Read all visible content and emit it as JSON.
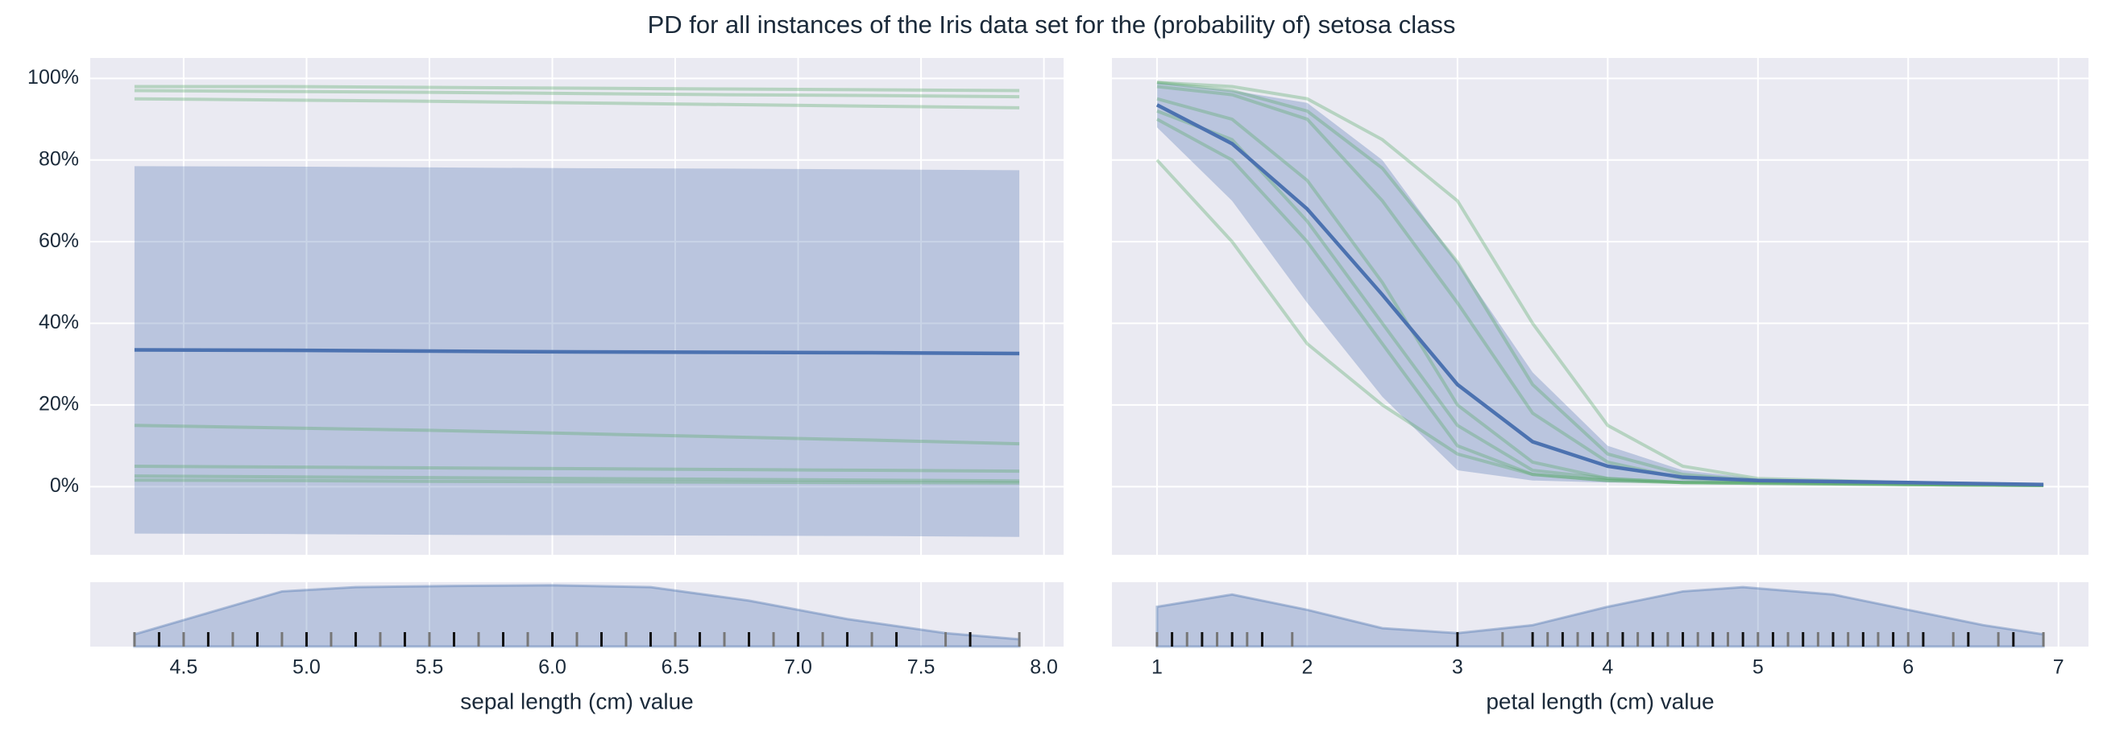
{
  "title": "PD for all instances of the Iris data set for the (probability of) setosa class",
  "chart_data": [
    {
      "type": "line",
      "xlabel": "sepal length (cm) value",
      "xlim": [
        4.12,
        8.08
      ],
      "ylim": [
        -16.7,
        105
      ],
      "xticks": [
        4.5,
        {
          "value": 5,
          "label": "5.0"
        },
        5.5,
        {
          "value": 6,
          "label": "6.0"
        },
        6.5,
        {
          "value": 7,
          "label": "7.0"
        },
        7.5,
        {
          "value": 8,
          "label": "8.0"
        }
      ],
      "yticks": [
        {
          "value": 0,
          "label": "0%"
        },
        {
          "value": 20,
          "label": "20%"
        },
        {
          "value": 40,
          "label": "40%"
        },
        {
          "value": 60,
          "label": "60%"
        },
        {
          "value": 80,
          "label": "80%"
        },
        {
          "value": 100,
          "label": "100%"
        }
      ],
      "grid": true,
      "mean_color": "#4c72b0",
      "band_color": "#4c72b0",
      "ice_color": "#55a868",
      "x": [
        4.3,
        4.9,
        5.5,
        6.1,
        6.7,
        7.3,
        7.9
      ],
      "mean": [
        33.5,
        33.4,
        33.2,
        33.0,
        32.9,
        32.8,
        32.6
      ],
      "band_lower": [
        -11.5,
        -11.6,
        -11.8,
        -11.9,
        -12.0,
        -12.1,
        -12.3
      ],
      "band_upper": [
        78.5,
        78.4,
        78.2,
        78.0,
        77.9,
        77.7,
        77.5
      ],
      "ice": [
        [
          98,
          98,
          97.8,
          97.6,
          97.4,
          97.2,
          97
        ],
        [
          97,
          96.8,
          96.6,
          96.3,
          96,
          95.8,
          95.5
        ],
        [
          95,
          94.7,
          94.4,
          94,
          93.6,
          93.2,
          92.8
        ],
        [
          2.6,
          2.4,
          2.2,
          2,
          1.8,
          1.6,
          1.4
        ],
        [
          1.6,
          1.5,
          1.3,
          1.2,
          1.1,
          1,
          0.9
        ],
        [
          15,
          14.4,
          13.8,
          13,
          12.2,
          11.4,
          10.5
        ],
        [
          5,
          4.8,
          4.6,
          4.4,
          4.2,
          4,
          3.8
        ]
      ],
      "rug": [
        4.3,
        4.4,
        4.5,
        4.6,
        4.7,
        4.8,
        4.9,
        5.0,
        5.1,
        5.2,
        5.3,
        5.4,
        5.5,
        5.6,
        5.7,
        5.8,
        5.9,
        6.0,
        6.1,
        6.2,
        6.3,
        6.4,
        6.5,
        6.6,
        6.7,
        6.8,
        6.9,
        7.0,
        7.1,
        7.2,
        7.3,
        7.4,
        7.6,
        7.7,
        7.9
      ],
      "density_x": [
        4.3,
        4.6,
        4.9,
        5.2,
        5.6,
        6.0,
        6.4,
        6.8,
        7.2,
        7.6,
        7.9
      ],
      "density": [
        0.2,
        0.55,
        0.9,
        0.97,
        0.99,
        1.0,
        0.97,
        0.75,
        0.45,
        0.22,
        0.12
      ],
      "density_ylim": [
        0,
        1.05
      ]
    },
    {
      "type": "line",
      "xlabel": "petal length (cm) value",
      "xlim": [
        0.7,
        7.2
      ],
      "ylim": [
        -16.7,
        105
      ],
      "xticks": [
        1,
        2,
        3,
        4,
        5,
        6,
        7
      ],
      "yticks": [
        0,
        20,
        40,
        60,
        80,
        100
      ],
      "grid": true,
      "mean_color": "#4c72b0",
      "band_color": "#4c72b0",
      "ice_color": "#55a868",
      "x": [
        1,
        1.5,
        2,
        2.5,
        3,
        3.5,
        4,
        4.5,
        5,
        6,
        6.9
      ],
      "mean": [
        93.5,
        84,
        68,
        47,
        25,
        11,
        5,
        2.3,
        1.5,
        1,
        0.5
      ],
      "band_lower": [
        88,
        70,
        45,
        22,
        4,
        1.5,
        1,
        1,
        0.8,
        0.5,
        0.3
      ],
      "band_upper": [
        99,
        97,
        94,
        80,
        55,
        28,
        10,
        4,
        2,
        1,
        0.7
      ],
      "ice": [
        [
          99,
          98,
          95,
          85,
          70,
          40,
          15,
          5,
          2,
          1,
          0.5
        ],
        [
          95,
          90,
          75,
          50,
          20,
          6,
          2,
          1,
          1,
          0.5,
          0.3
        ],
        [
          90,
          80,
          60,
          35,
          10,
          3,
          1.5,
          1,
          0.8,
          0.5,
          0.3
        ],
        [
          98,
          96,
          90,
          70,
          45,
          18,
          6,
          2,
          1.2,
          0.8,
          0.4
        ],
        [
          92,
          85,
          65,
          40,
          15,
          4,
          2,
          1,
          0.8,
          0.5,
          0.3
        ],
        [
          80,
          60,
          35,
          20,
          8,
          3,
          1.5,
          1,
          0.8,
          0.5,
          0.3
        ],
        [
          99,
          97,
          92,
          78,
          55,
          25,
          8,
          3,
          1.5,
          0.8,
          0.4
        ]
      ],
      "rug": [
        1.0,
        1.1,
        1.2,
        1.3,
        1.4,
        1.5,
        1.6,
        1.7,
        1.9,
        3.0,
        3.3,
        3.5,
        3.6,
        3.7,
        3.8,
        3.9,
        4.0,
        4.1,
        4.2,
        4.3,
        4.4,
        4.5,
        4.6,
        4.7,
        4.8,
        4.9,
        5.0,
        5.1,
        5.2,
        5.3,
        5.4,
        5.5,
        5.6,
        5.7,
        5.8,
        5.9,
        6.0,
        6.1,
        6.3,
        6.4,
        6.6,
        6.7,
        6.9
      ],
      "density_x": [
        1,
        1.5,
        2,
        2.5,
        3,
        3.5,
        4,
        4.5,
        4.9,
        5.5,
        6,
        6.5,
        6.9
      ],
      "density": [
        0.65,
        0.85,
        0.6,
        0.3,
        0.22,
        0.35,
        0.65,
        0.9,
        0.97,
        0.85,
        0.6,
        0.35,
        0.2
      ],
      "density_ylim": [
        0,
        1.05
      ]
    }
  ]
}
